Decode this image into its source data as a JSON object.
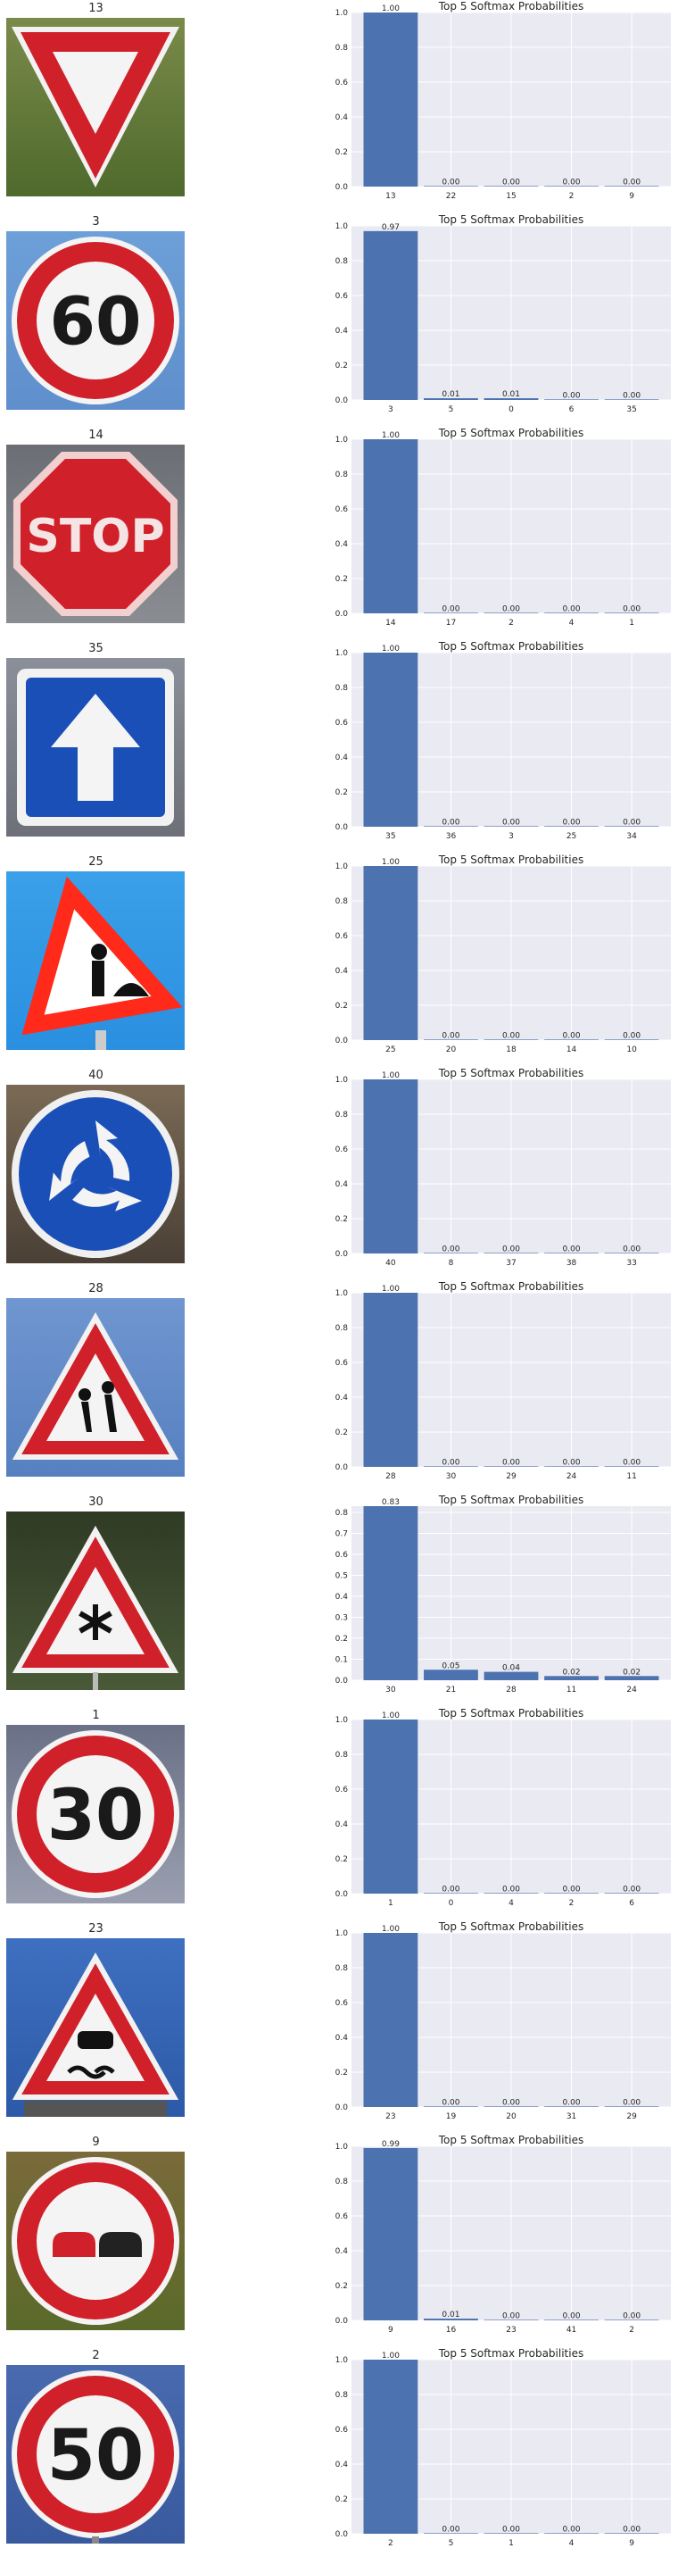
{
  "colors": {
    "bar": "#4c72b0",
    "plot_background": "#eaeaf2",
    "grid": "#ffffff",
    "sign_red": "#d0202a",
    "sign_blue": "#1a4fb8"
  },
  "chart_data": [
    {
      "type": "bar",
      "title": "Top 5 Softmax Probabilities",
      "image_title": "13",
      "image_icon": "yield-sign-icon",
      "categories": [
        "13",
        "22",
        "15",
        "2",
        "9"
      ],
      "values": [
        1.0,
        0.0,
        0.0,
        0.0,
        0.0
      ],
      "labels": [
        "1.00",
        "0.00",
        "0.00",
        "0.00",
        "0.00"
      ],
      "ylim": [
        0,
        1.0
      ],
      "yticks": [
        "0.0",
        "0.2",
        "0.4",
        "0.6",
        "0.8",
        "1.0"
      ],
      "grid": true
    },
    {
      "type": "bar",
      "title": "Top 5 Softmax Probabilities",
      "image_title": "3",
      "image_icon": "speed-limit-60-sign-icon",
      "categories": [
        "3",
        "5",
        "0",
        "6",
        "35"
      ],
      "values": [
        0.97,
        0.01,
        0.01,
        0.0,
        0.0
      ],
      "labels": [
        "0.97",
        "0.01",
        "0.01",
        "0.00",
        "0.00"
      ],
      "ylim": [
        0,
        1.0
      ],
      "yticks": [
        "0.0",
        "0.2",
        "0.4",
        "0.6",
        "0.8",
        "1.0"
      ],
      "grid": true
    },
    {
      "type": "bar",
      "title": "Top 5 Softmax Probabilities",
      "image_title": "14",
      "image_icon": "stop-sign-icon",
      "categories": [
        "14",
        "17",
        "2",
        "4",
        "1"
      ],
      "values": [
        1.0,
        0.0,
        0.0,
        0.0,
        0.0
      ],
      "labels": [
        "1.00",
        "0.00",
        "0.00",
        "0.00",
        "0.00"
      ],
      "ylim": [
        0,
        1.0
      ],
      "yticks": [
        "0.0",
        "0.2",
        "0.4",
        "0.6",
        "0.8",
        "1.0"
      ],
      "grid": true
    },
    {
      "type": "bar",
      "title": "Top 5 Softmax Probabilities",
      "image_title": "35",
      "image_icon": "ahead-only-sign-icon",
      "categories": [
        "35",
        "36",
        "3",
        "25",
        "34"
      ],
      "values": [
        1.0,
        0.0,
        0.0,
        0.0,
        0.0
      ],
      "labels": [
        "1.00",
        "0.00",
        "0.00",
        "0.00",
        "0.00"
      ],
      "ylim": [
        0,
        1.0
      ],
      "yticks": [
        "0.0",
        "0.2",
        "0.4",
        "0.6",
        "0.8",
        "1.0"
      ],
      "grid": true
    },
    {
      "type": "bar",
      "title": "Top 5 Softmax Probabilities",
      "image_title": "25",
      "image_icon": "road-work-sign-icon",
      "categories": [
        "25",
        "20",
        "18",
        "14",
        "10"
      ],
      "values": [
        1.0,
        0.0,
        0.0,
        0.0,
        0.0
      ],
      "labels": [
        "1.00",
        "0.00",
        "0.00",
        "0.00",
        "0.00"
      ],
      "ylim": [
        0,
        1.0
      ],
      "yticks": [
        "0.0",
        "0.2",
        "0.4",
        "0.6",
        "0.8",
        "1.0"
      ],
      "grid": true
    },
    {
      "type": "bar",
      "title": "Top 5 Softmax Probabilities",
      "image_title": "40",
      "image_icon": "roundabout-sign-icon",
      "categories": [
        "40",
        "8",
        "37",
        "38",
        "33"
      ],
      "values": [
        1.0,
        0.0,
        0.0,
        0.0,
        0.0
      ],
      "labels": [
        "1.00",
        "0.00",
        "0.00",
        "0.00",
        "0.00"
      ],
      "ylim": [
        0,
        1.0
      ],
      "yticks": [
        "0.0",
        "0.2",
        "0.4",
        "0.6",
        "0.8",
        "1.0"
      ],
      "grid": true
    },
    {
      "type": "bar",
      "title": "Top 5 Softmax Probabilities",
      "image_title": "28",
      "image_icon": "children-crossing-sign-icon",
      "categories": [
        "28",
        "30",
        "29",
        "24",
        "11"
      ],
      "values": [
        1.0,
        0.0,
        0.0,
        0.0,
        0.0
      ],
      "labels": [
        "1.00",
        "0.00",
        "0.00",
        "0.00",
        "0.00"
      ],
      "ylim": [
        0,
        1.0
      ],
      "yticks": [
        "0.0",
        "0.2",
        "0.4",
        "0.6",
        "0.8",
        "1.0"
      ],
      "grid": true
    },
    {
      "type": "bar",
      "title": "Top 5 Softmax Probabilities",
      "image_title": "30",
      "image_icon": "snow-ice-sign-icon",
      "categories": [
        "30",
        "21",
        "28",
        "11",
        "24"
      ],
      "values": [
        0.83,
        0.05,
        0.04,
        0.02,
        0.02
      ],
      "labels": [
        "0.83",
        "0.05",
        "0.04",
        "0.02",
        "0.02"
      ],
      "ylim": [
        0,
        0.83
      ],
      "yticks": [
        "0.0",
        "0.1",
        "0.2",
        "0.3",
        "0.4",
        "0.5",
        "0.6",
        "0.7",
        "0.8"
      ],
      "grid": true
    },
    {
      "type": "bar",
      "title": "Top 5 Softmax Probabilities",
      "image_title": "1",
      "image_icon": "speed-limit-30-sign-icon",
      "categories": [
        "1",
        "0",
        "4",
        "2",
        "6"
      ],
      "values": [
        1.0,
        0.0,
        0.0,
        0.0,
        0.0
      ],
      "labels": [
        "1.00",
        "0.00",
        "0.00",
        "0.00",
        "0.00"
      ],
      "ylim": [
        0,
        1.0
      ],
      "yticks": [
        "0.0",
        "0.2",
        "0.4",
        "0.6",
        "0.8",
        "1.0"
      ],
      "grid": true
    },
    {
      "type": "bar",
      "title": "Top 5 Softmax Probabilities",
      "image_title": "23",
      "image_icon": "slippery-road-sign-icon",
      "categories": [
        "23",
        "19",
        "20",
        "31",
        "29"
      ],
      "values": [
        1.0,
        0.0,
        0.0,
        0.0,
        0.0
      ],
      "labels": [
        "1.00",
        "0.00",
        "0.00",
        "0.00",
        "0.00"
      ],
      "ylim": [
        0,
        1.0
      ],
      "yticks": [
        "0.0",
        "0.2",
        "0.4",
        "0.6",
        "0.8",
        "1.0"
      ],
      "grid": true
    },
    {
      "type": "bar",
      "title": "Top 5 Softmax Probabilities",
      "image_title": "9",
      "image_icon": "no-passing-sign-icon",
      "categories": [
        "9",
        "16",
        "23",
        "41",
        "2"
      ],
      "values": [
        0.99,
        0.01,
        0.0,
        0.0,
        0.0
      ],
      "labels": [
        "0.99",
        "0.01",
        "0.00",
        "0.00",
        "0.00"
      ],
      "ylim": [
        0,
        1.0
      ],
      "yticks": [
        "0.0",
        "0.2",
        "0.4",
        "0.6",
        "0.8",
        "1.0"
      ],
      "grid": true
    },
    {
      "type": "bar",
      "title": "Top 5 Softmax Probabilities",
      "image_title": "2",
      "image_icon": "speed-limit-50-sign-icon",
      "categories": [
        "2",
        "5",
        "1",
        "4",
        "9"
      ],
      "values": [
        1.0,
        0.0,
        0.0,
        0.0,
        0.0
      ],
      "labels": [
        "1.00",
        "0.00",
        "0.00",
        "0.00",
        "0.00"
      ],
      "ylim": [
        0,
        1.0
      ],
      "yticks": [
        "0.0",
        "0.2",
        "0.4",
        "0.6",
        "0.8",
        "1.0"
      ],
      "grid": true
    }
  ],
  "sign_texts": {
    "1": "60",
    "2": "STOP",
    "8": "30",
    "11": "50"
  }
}
